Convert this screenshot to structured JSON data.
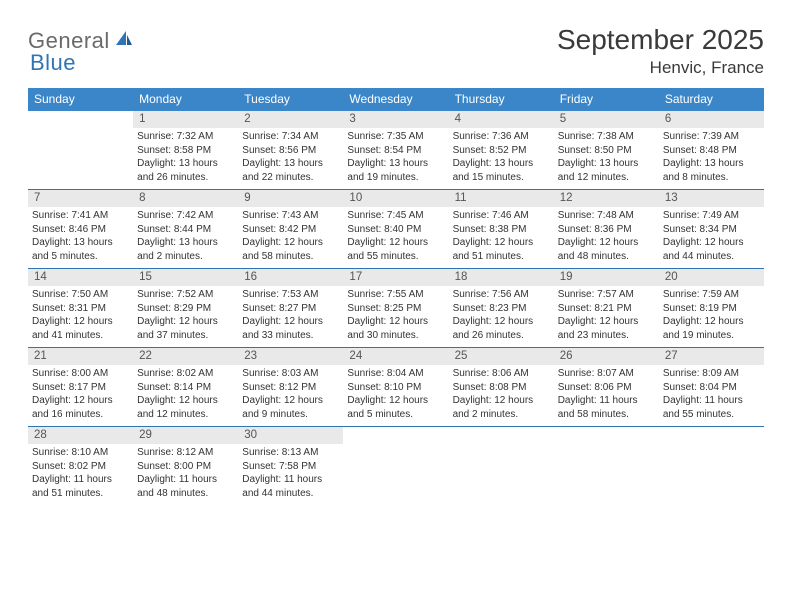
{
  "brand": {
    "part1": "General",
    "part2": "Blue"
  },
  "title": "September 2025",
  "location": "Henvic, France",
  "colors": {
    "header_bar": "#3a86c8",
    "row_border": "#2f75b5",
    "daynum_bg": "#e9e9e9",
    "text": "#333333",
    "logo_gray": "#6a6a6a",
    "logo_blue": "#2f75b5"
  },
  "days_of_week": [
    "Sunday",
    "Monday",
    "Tuesday",
    "Wednesday",
    "Thursday",
    "Friday",
    "Saturday"
  ],
  "weeks": [
    [
      null,
      {
        "n": "1",
        "sr": "7:32 AM",
        "ss": "8:58 PM",
        "dl": "13 hours and 26 minutes."
      },
      {
        "n": "2",
        "sr": "7:34 AM",
        "ss": "8:56 PM",
        "dl": "13 hours and 22 minutes."
      },
      {
        "n": "3",
        "sr": "7:35 AM",
        "ss": "8:54 PM",
        "dl": "13 hours and 19 minutes."
      },
      {
        "n": "4",
        "sr": "7:36 AM",
        "ss": "8:52 PM",
        "dl": "13 hours and 15 minutes."
      },
      {
        "n": "5",
        "sr": "7:38 AM",
        "ss": "8:50 PM",
        "dl": "13 hours and 12 minutes."
      },
      {
        "n": "6",
        "sr": "7:39 AM",
        "ss": "8:48 PM",
        "dl": "13 hours and 8 minutes."
      }
    ],
    [
      {
        "n": "7",
        "sr": "7:41 AM",
        "ss": "8:46 PM",
        "dl": "13 hours and 5 minutes."
      },
      {
        "n": "8",
        "sr": "7:42 AM",
        "ss": "8:44 PM",
        "dl": "13 hours and 2 minutes."
      },
      {
        "n": "9",
        "sr": "7:43 AM",
        "ss": "8:42 PM",
        "dl": "12 hours and 58 minutes."
      },
      {
        "n": "10",
        "sr": "7:45 AM",
        "ss": "8:40 PM",
        "dl": "12 hours and 55 minutes."
      },
      {
        "n": "11",
        "sr": "7:46 AM",
        "ss": "8:38 PM",
        "dl": "12 hours and 51 minutes."
      },
      {
        "n": "12",
        "sr": "7:48 AM",
        "ss": "8:36 PM",
        "dl": "12 hours and 48 minutes."
      },
      {
        "n": "13",
        "sr": "7:49 AM",
        "ss": "8:34 PM",
        "dl": "12 hours and 44 minutes."
      }
    ],
    [
      {
        "n": "14",
        "sr": "7:50 AM",
        "ss": "8:31 PM",
        "dl": "12 hours and 41 minutes."
      },
      {
        "n": "15",
        "sr": "7:52 AM",
        "ss": "8:29 PM",
        "dl": "12 hours and 37 minutes."
      },
      {
        "n": "16",
        "sr": "7:53 AM",
        "ss": "8:27 PM",
        "dl": "12 hours and 33 minutes."
      },
      {
        "n": "17",
        "sr": "7:55 AM",
        "ss": "8:25 PM",
        "dl": "12 hours and 30 minutes."
      },
      {
        "n": "18",
        "sr": "7:56 AM",
        "ss": "8:23 PM",
        "dl": "12 hours and 26 minutes."
      },
      {
        "n": "19",
        "sr": "7:57 AM",
        "ss": "8:21 PM",
        "dl": "12 hours and 23 minutes."
      },
      {
        "n": "20",
        "sr": "7:59 AM",
        "ss": "8:19 PM",
        "dl": "12 hours and 19 minutes."
      }
    ],
    [
      {
        "n": "21",
        "sr": "8:00 AM",
        "ss": "8:17 PM",
        "dl": "12 hours and 16 minutes."
      },
      {
        "n": "22",
        "sr": "8:02 AM",
        "ss": "8:14 PM",
        "dl": "12 hours and 12 minutes."
      },
      {
        "n": "23",
        "sr": "8:03 AM",
        "ss": "8:12 PM",
        "dl": "12 hours and 9 minutes."
      },
      {
        "n": "24",
        "sr": "8:04 AM",
        "ss": "8:10 PM",
        "dl": "12 hours and 5 minutes."
      },
      {
        "n": "25",
        "sr": "8:06 AM",
        "ss": "8:08 PM",
        "dl": "12 hours and 2 minutes."
      },
      {
        "n": "26",
        "sr": "8:07 AM",
        "ss": "8:06 PM",
        "dl": "11 hours and 58 minutes."
      },
      {
        "n": "27",
        "sr": "8:09 AM",
        "ss": "8:04 PM",
        "dl": "11 hours and 55 minutes."
      }
    ],
    [
      {
        "n": "28",
        "sr": "8:10 AM",
        "ss": "8:02 PM",
        "dl": "11 hours and 51 minutes."
      },
      {
        "n": "29",
        "sr": "8:12 AM",
        "ss": "8:00 PM",
        "dl": "11 hours and 48 minutes."
      },
      {
        "n": "30",
        "sr": "8:13 AM",
        "ss": "7:58 PM",
        "dl": "11 hours and 44 minutes."
      },
      null,
      null,
      null,
      null
    ]
  ],
  "labels": {
    "sunrise": "Sunrise:",
    "sunset": "Sunset:",
    "daylight": "Daylight:"
  }
}
